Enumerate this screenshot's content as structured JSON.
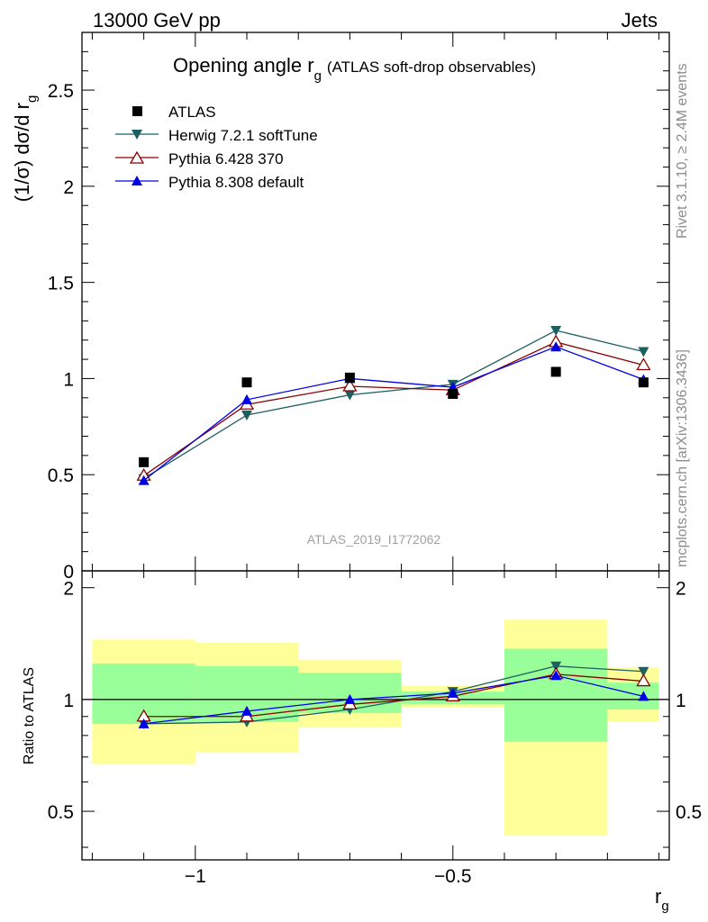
{
  "header": {
    "left": "13000 GeV pp",
    "right": "Jets"
  },
  "title": {
    "main": "Opening angle r",
    "sub": "g",
    "suffix": "(ATLAS soft-drop observables)"
  },
  "ylabel": {
    "main": "(1/σ) dσ/d r",
    "sub": "g"
  },
  "xlabel": {
    "main": "r",
    "sub": "g"
  },
  "ratio_ylabel": "Ratio to ATLAS",
  "side_text": {
    "rivet": "Rivet 3.1.10, ≥ 2.4M events",
    "mcplots": "mcplots.cern.ch [arXiv:1306.3436]"
  },
  "watermark": "ATLAS_2019_I1772062",
  "colors": {
    "atlas": "#000000",
    "herwig": "#1e5f5f",
    "pythia6": "#8b0000",
    "pythia8": "#0000e6",
    "band_outer": "#ffff99",
    "band_inner": "#99ff99"
  },
  "chart_data": [
    {
      "type": "scatter",
      "name": "main",
      "xlim": [
        -1.22,
        -0.08
      ],
      "ylim": [
        0,
        2.8
      ],
      "yticks": [
        0,
        0.5,
        1,
        1.5,
        2,
        2.5
      ],
      "ytick_labels": [
        "0",
        "0.5",
        "1",
        "1.5",
        "2",
        "2.5"
      ],
      "x": [
        -1.1,
        -0.9,
        -0.7,
        -0.5,
        -0.3,
        -0.13
      ],
      "series": [
        {
          "name": "ATLAS",
          "key": "atlas",
          "marker": "square",
          "values": [
            0.565,
            0.98,
            1.005,
            0.92,
            1.035,
            0.98
          ]
        },
        {
          "name": "Herwig 7.2.1 softTune",
          "key": "herwig",
          "marker": "triangle-down",
          "values": [
            0.48,
            0.81,
            0.915,
            0.97,
            1.25,
            1.14
          ]
        },
        {
          "name": "Pythia 6.428 370",
          "key": "pythia6",
          "marker": "triangle-up-open",
          "values": [
            0.495,
            0.865,
            0.96,
            0.94,
            1.19,
            1.07
          ]
        },
        {
          "name": "Pythia 8.308 default",
          "key": "pythia8",
          "marker": "triangle-up",
          "values": [
            0.47,
            0.89,
            1.0,
            0.955,
            1.165,
            0.995
          ]
        }
      ]
    },
    {
      "type": "scatter",
      "name": "ratio",
      "xlim": [
        -1.22,
        -0.08
      ],
      "ylim": [
        0.37,
        2.22
      ],
      "yticks": [
        0.5,
        1,
        2
      ],
      "ytick_labels": [
        "0.5",
        "1",
        "2"
      ],
      "xticks": [
        -1,
        -0.5
      ],
      "xtick_labels": [
        "−1",
        "−0.5"
      ],
      "bins": [
        [
          -1.2,
          -1.0
        ],
        [
          -1.0,
          -0.8
        ],
        [
          -0.8,
          -0.6
        ],
        [
          -0.6,
          -0.4
        ],
        [
          -0.4,
          -0.2
        ],
        [
          -0.2,
          -0.1
        ]
      ],
      "band_outer": [
        [
          0.67,
          1.45
        ],
        [
          0.72,
          1.42
        ],
        [
          0.84,
          1.28
        ],
        [
          0.95,
          1.09
        ],
        [
          0.43,
          1.64
        ],
        [
          0.87,
          1.22
        ]
      ],
      "band_inner": [
        [
          0.86,
          1.25
        ],
        [
          0.87,
          1.23
        ],
        [
          0.92,
          1.18
        ],
        [
          0.97,
          1.05
        ],
        [
          0.77,
          1.37
        ],
        [
          0.94,
          1.11
        ]
      ],
      "x": [
        -1.1,
        -0.9,
        -0.7,
        -0.5,
        -0.3,
        -0.13
      ],
      "series": [
        {
          "name": "Herwig 7.2.1 softTune",
          "key": "herwig",
          "marker": "triangle-down",
          "values": [
            0.86,
            0.87,
            0.94,
            1.05,
            1.23,
            1.19
          ]
        },
        {
          "name": "Pythia 6.428 370",
          "key": "pythia6",
          "marker": "triangle-up-open",
          "values": [
            0.9,
            0.9,
            0.97,
            1.02,
            1.17,
            1.12
          ]
        },
        {
          "name": "Pythia 8.308 default",
          "key": "pythia8",
          "marker": "triangle-up",
          "values": [
            0.86,
            0.93,
            1.0,
            1.04,
            1.16,
            1.02
          ]
        }
      ]
    }
  ]
}
